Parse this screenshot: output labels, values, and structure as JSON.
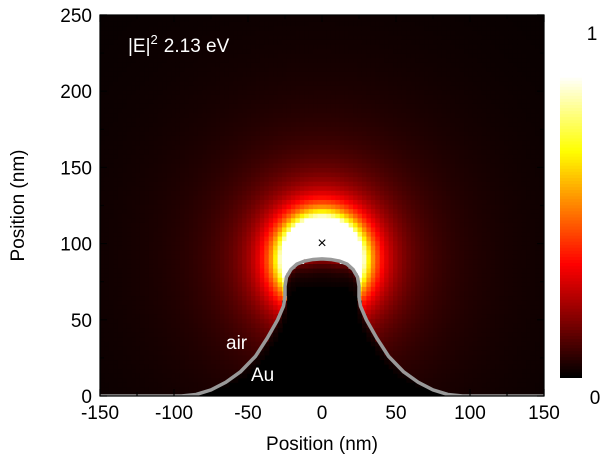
{
  "chart_data": {
    "type": "heatmap",
    "title": "",
    "xlabel": "Position (nm)",
    "ylabel": "Position (nm)",
    "xlim": [
      -150,
      150
    ],
    "ylim": [
      0,
      250
    ],
    "x_ticks": [
      -150,
      -100,
      -50,
      0,
      50,
      100,
      150
    ],
    "y_ticks": [
      0,
      50,
      100,
      150,
      200,
      250
    ],
    "grid": false,
    "colormap": "hot",
    "colorbar": {
      "min_label": "0",
      "max_label": "1",
      "min": 0,
      "max": 1
    },
    "annotations": {
      "quantity": "|E|",
      "exponent": "2",
      "energy": "2.13 eV",
      "medium_top": "air",
      "medium_bottom": "Au"
    },
    "marker": {
      "symbol": "×",
      "x": 0,
      "y": 100
    },
    "field_peak": {
      "x": 0,
      "y": 90
    },
    "interface": {
      "color": "#999999",
      "points": [
        [
          -150,
          0
        ],
        [
          -95,
          0
        ],
        [
          -85,
          1
        ],
        [
          -75,
          4
        ],
        [
          -65,
          9
        ],
        [
          -55,
          16
        ],
        [
          -45,
          26
        ],
        [
          -37,
          38
        ],
        [
          -30,
          50
        ],
        [
          -26,
          59
        ],
        [
          -25,
          65
        ],
        [
          -25,
          72
        ],
        [
          -24,
          78
        ],
        [
          -21,
          83
        ],
        [
          -17,
          86.5
        ],
        [
          -12,
          88.5
        ],
        [
          -6,
          89.6
        ],
        [
          0,
          90
        ],
        [
          6,
          89.6
        ],
        [
          12,
          88.5
        ],
        [
          17,
          86.5
        ],
        [
          21,
          83
        ],
        [
          24,
          78
        ],
        [
          25,
          72
        ],
        [
          25,
          65
        ],
        [
          26,
          59
        ],
        [
          30,
          50
        ],
        [
          37,
          38
        ],
        [
          45,
          26
        ],
        [
          55,
          16
        ],
        [
          65,
          9
        ],
        [
          75,
          4
        ],
        [
          85,
          1
        ],
        [
          95,
          0
        ],
        [
          150,
          0
        ]
      ]
    }
  }
}
